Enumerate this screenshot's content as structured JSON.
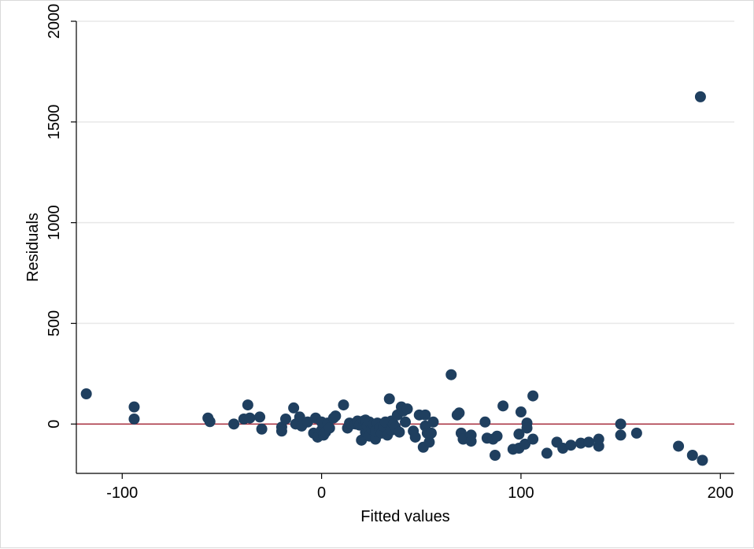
{
  "chart_data": {
    "type": "scatter",
    "title": "",
    "xlabel": "Fitted values",
    "ylabel": "Residuals",
    "xlim": [
      -123,
      207
    ],
    "ylim": [
      -245,
      2000
    ],
    "xticks": [
      -100,
      0,
      100,
      200
    ],
    "yticks": [
      0,
      500,
      1000,
      1500,
      2000
    ],
    "xtick_labels": [
      "-100",
      "0",
      "100",
      "200"
    ],
    "ytick_labels": [
      "0",
      "500",
      "1000",
      "1500",
      "2000"
    ],
    "grid": "horizontal",
    "reference_line_y": 0,
    "colors": {
      "marker": "#1f3f5f",
      "reference_line": "#a52a3a",
      "grid": "#e8e8e8",
      "axis": "#000000"
    },
    "points": [
      {
        "x": -118,
        "y": 150
      },
      {
        "x": -94,
        "y": 85
      },
      {
        "x": -94,
        "y": 25
      },
      {
        "x": -57,
        "y": 30
      },
      {
        "x": -56,
        "y": 12
      },
      {
        "x": -44,
        "y": 0
      },
      {
        "x": -39,
        "y": 25
      },
      {
        "x": -37,
        "y": 95
      },
      {
        "x": -36,
        "y": 30
      },
      {
        "x": -31,
        "y": 35
      },
      {
        "x": -30,
        "y": -25
      },
      {
        "x": -20,
        "y": -35
      },
      {
        "x": -20,
        "y": -15
      },
      {
        "x": -18,
        "y": 25
      },
      {
        "x": -14,
        "y": 80
      },
      {
        "x": -13,
        "y": 0
      },
      {
        "x": -11,
        "y": 35
      },
      {
        "x": -10,
        "y": -10
      },
      {
        "x": -7,
        "y": 10
      },
      {
        "x": -4,
        "y": -45
      },
      {
        "x": -3,
        "y": 30
      },
      {
        "x": -2,
        "y": -65
      },
      {
        "x": 0,
        "y": -30
      },
      {
        "x": 0,
        "y": 10
      },
      {
        "x": 1,
        "y": -55
      },
      {
        "x": 2,
        "y": -40
      },
      {
        "x": 3,
        "y": 5
      },
      {
        "x": 4,
        "y": -20
      },
      {
        "x": 6,
        "y": 30
      },
      {
        "x": 7,
        "y": 40
      },
      {
        "x": 11,
        "y": 95
      },
      {
        "x": 13,
        "y": -20
      },
      {
        "x": 14,
        "y": 5
      },
      {
        "x": 15,
        "y": 0
      },
      {
        "x": 17,
        "y": 0
      },
      {
        "x": 18,
        "y": 15
      },
      {
        "x": 19,
        "y": -5
      },
      {
        "x": 20,
        "y": -80
      },
      {
        "x": 21,
        "y": 15
      },
      {
        "x": 22,
        "y": -40
      },
      {
        "x": 22,
        "y": 20
      },
      {
        "x": 23,
        "y": -10
      },
      {
        "x": 24,
        "y": -60
      },
      {
        "x": 24,
        "y": 10
      },
      {
        "x": 25,
        "y": -25
      },
      {
        "x": 26,
        "y": 0
      },
      {
        "x": 27,
        "y": -75
      },
      {
        "x": 27,
        "y": -35
      },
      {
        "x": 28,
        "y": 5
      },
      {
        "x": 29,
        "y": -20
      },
      {
        "x": 30,
        "y": -45
      },
      {
        "x": 31,
        "y": -10
      },
      {
        "x": 32,
        "y": 10
      },
      {
        "x": 33,
        "y": -55
      },
      {
        "x": 34,
        "y": 125
      },
      {
        "x": 35,
        "y": -30
      },
      {
        "x": 35,
        "y": 15
      },
      {
        "x": 36,
        "y": 0
      },
      {
        "x": 37,
        "y": -15
      },
      {
        "x": 38,
        "y": 45
      },
      {
        "x": 39,
        "y": -40
      },
      {
        "x": 40,
        "y": 85
      },
      {
        "x": 41,
        "y": 65
      },
      {
        "x": 42,
        "y": 10
      },
      {
        "x": 43,
        "y": 75
      },
      {
        "x": 46,
        "y": -35
      },
      {
        "x": 47,
        "y": -65
      },
      {
        "x": 49,
        "y": 45
      },
      {
        "x": 51,
        "y": -115
      },
      {
        "x": 52,
        "y": 45
      },
      {
        "x": 52,
        "y": -10
      },
      {
        "x": 53,
        "y": -45
      },
      {
        "x": 54,
        "y": -90
      },
      {
        "x": 55,
        "y": -45
      },
      {
        "x": 56,
        "y": 10
      },
      {
        "x": 65,
        "y": 245
      },
      {
        "x": 68,
        "y": 45
      },
      {
        "x": 69,
        "y": 55
      },
      {
        "x": 70,
        "y": -45
      },
      {
        "x": 71,
        "y": -75
      },
      {
        "x": 74,
        "y": -70
      },
      {
        "x": 75,
        "y": -55
      },
      {
        "x": 75,
        "y": -85
      },
      {
        "x": 82,
        "y": 10
      },
      {
        "x": 83,
        "y": -70
      },
      {
        "x": 86,
        "y": -75
      },
      {
        "x": 87,
        "y": -155
      },
      {
        "x": 88,
        "y": -60
      },
      {
        "x": 91,
        "y": 90
      },
      {
        "x": 96,
        "y": -125
      },
      {
        "x": 99,
        "y": -50
      },
      {
        "x": 99,
        "y": -120
      },
      {
        "x": 100,
        "y": 60
      },
      {
        "x": 102,
        "y": -100
      },
      {
        "x": 103,
        "y": 5
      },
      {
        "x": 103,
        "y": -20
      },
      {
        "x": 106,
        "y": -75
      },
      {
        "x": 106,
        "y": 140
      },
      {
        "x": 113,
        "y": -145
      },
      {
        "x": 118,
        "y": -90
      },
      {
        "x": 121,
        "y": -120
      },
      {
        "x": 125,
        "y": -105
      },
      {
        "x": 130,
        "y": -95
      },
      {
        "x": 134,
        "y": -90
      },
      {
        "x": 139,
        "y": -110
      },
      {
        "x": 139,
        "y": -75
      },
      {
        "x": 150,
        "y": 0
      },
      {
        "x": 150,
        "y": -55
      },
      {
        "x": 158,
        "y": -45
      },
      {
        "x": 179,
        "y": -110
      },
      {
        "x": 186,
        "y": -155
      },
      {
        "x": 190,
        "y": 1625
      },
      {
        "x": 191,
        "y": -180
      }
    ]
  }
}
